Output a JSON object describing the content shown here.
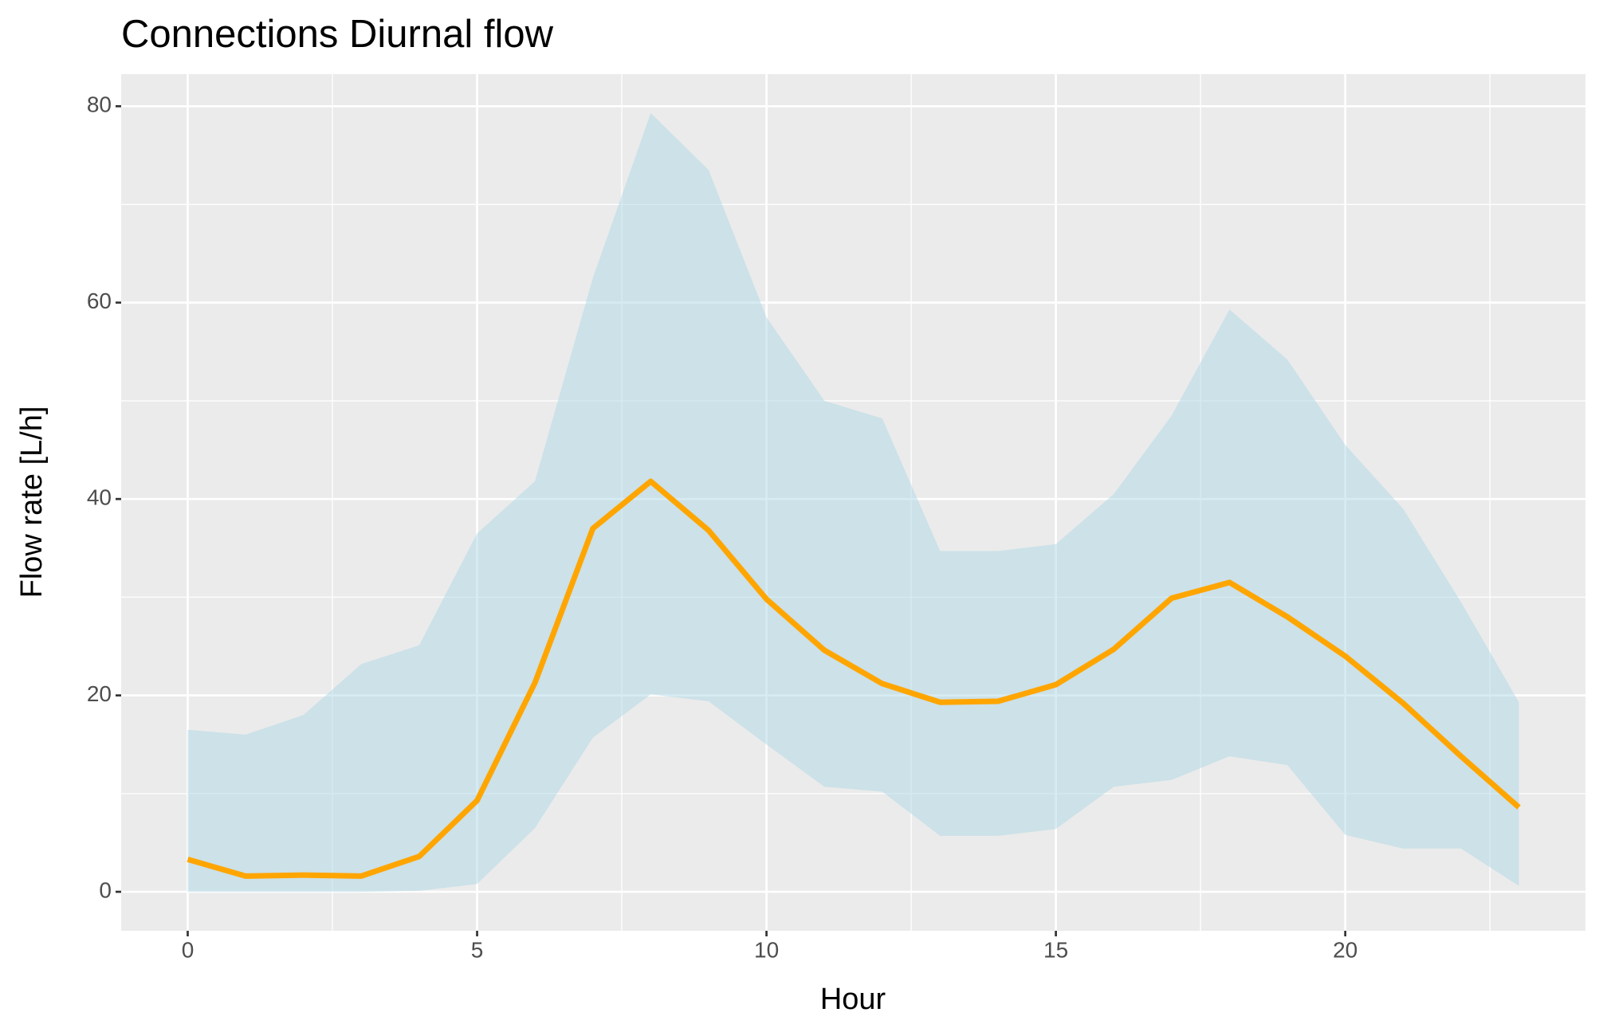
{
  "chart_data": {
    "type": "ribbon-line",
    "title": "Connections Diurnal flow",
    "x_label": "Hour",
    "y_label": "Flow rate [L/h]",
    "x": [
      0,
      1,
      2,
      3,
      4,
      5,
      6,
      7,
      8,
      9,
      10,
      11,
      12,
      13,
      14,
      15,
      16,
      17,
      18,
      19,
      20,
      21,
      22,
      23
    ],
    "line": {
      "color": "#ffa500",
      "values": [
        3.3,
        1.6,
        1.7,
        1.6,
        3.6,
        9.3,
        21.3,
        37,
        41.8,
        36.8,
        29.8,
        24.6,
        21.2,
        19.3,
        19.4,
        21.1,
        24.7,
        29.9,
        31.5,
        28,
        24,
        19.2,
        13.8,
        8.6
      ]
    },
    "band": {
      "color": "#add8e6",
      "upper": [
        16.5,
        16,
        18,
        23.2,
        25.1,
        36.5,
        41.8,
        62.5,
        79.3,
        73.5,
        58.5,
        50,
        48.2,
        34.7,
        34.7,
        35.4,
        40.5,
        48.5,
        59.3,
        54.2,
        45.5,
        39,
        29.5,
        19.3
      ],
      "lower": [
        0,
        0,
        0,
        0,
        0.1,
        0.8,
        6.5,
        15.7,
        20.1,
        19.4,
        15,
        10.7,
        10.2,
        5.7,
        5.7,
        6.4,
        10.7,
        11.4,
        13.8,
        12.9,
        5.8,
        4.4,
        4.4,
        0.6
      ]
    },
    "xlim": [
      -1.15,
      24.15
    ],
    "ylim": [
      -3.97,
      83.27
    ],
    "xticks": [
      0,
      5,
      10,
      15,
      20
    ],
    "yticks": [
      0,
      20,
      40,
      60,
      80
    ],
    "x_minor_ticks": [
      2.5,
      7.5,
      12.5,
      17.5,
      22.5
    ],
    "y_minor_ticks": [
      10,
      30,
      50,
      70
    ],
    "grid": true
  }
}
